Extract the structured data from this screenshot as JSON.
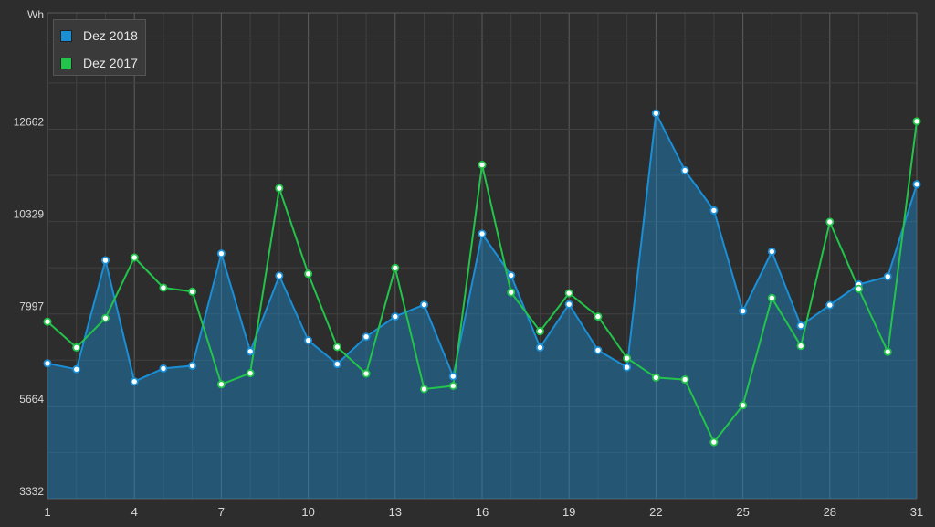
{
  "chart_data": {
    "type": "area",
    "ylabel": "Wh",
    "ylim": [
      3332,
      15600
    ],
    "yticks": [
      3332,
      5664,
      7997,
      10329,
      12662
    ],
    "xlim": [
      1,
      31
    ],
    "xticks": [
      1,
      4,
      7,
      10,
      13,
      16,
      19,
      22,
      25,
      28,
      31
    ],
    "grid": true,
    "legend_position": "top-left",
    "x": [
      1,
      2,
      3,
      4,
      5,
      6,
      7,
      8,
      9,
      10,
      11,
      12,
      13,
      14,
      15,
      16,
      17,
      18,
      19,
      20,
      21,
      22,
      23,
      24,
      25,
      26,
      27,
      28,
      29,
      30,
      31
    ],
    "series": [
      {
        "name": "Dez 2018",
        "color": "#1a8fd6",
        "fill": true,
        "values": [
          6750,
          6600,
          9350,
          6290,
          6620,
          6690,
          9520,
          7050,
          8960,
          7330,
          6730,
          7420,
          7930,
          8230,
          6420,
          10020,
          8970,
          7150,
          8240,
          7080,
          6650,
          13060,
          11620,
          10610,
          8070,
          9570,
          7700,
          8220,
          8740,
          8940,
          11270
        ]
      },
      {
        "name": "Dez 2017",
        "color": "#22c44a",
        "fill": false,
        "values": [
          7800,
          7150,
          7890,
          9420,
          8660,
          8560,
          6220,
          6500,
          11170,
          9010,
          7160,
          6490,
          9160,
          6100,
          6180,
          11760,
          8540,
          7560,
          8520,
          7930,
          6880,
          6390,
          6340,
          4760,
          5690,
          8400,
          7190,
          10320,
          8630,
          7040,
          12860
        ]
      }
    ]
  },
  "legend": {
    "items": [
      {
        "label": "Dez 2018",
        "color": "#1a8fd6"
      },
      {
        "label": "Dez 2017",
        "color": "#22c44a"
      }
    ]
  }
}
